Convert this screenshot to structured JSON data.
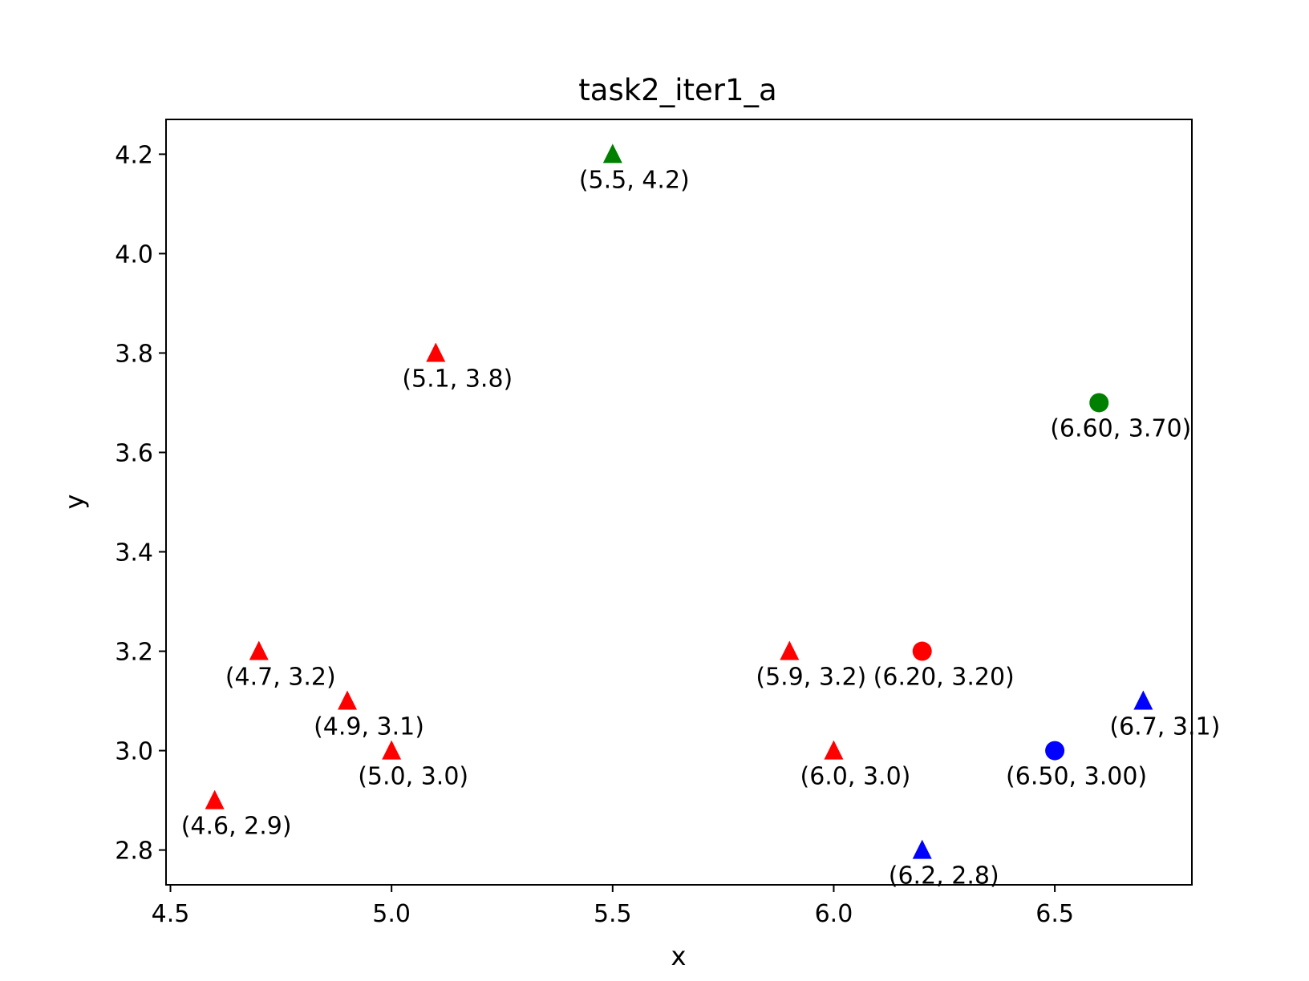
{
  "chart_data": {
    "type": "scatter",
    "title": "task2_iter1_a",
    "xlabel": "x",
    "ylabel": "y",
    "xlim": [
      4.49,
      6.81
    ],
    "ylim": [
      2.73,
      4.27
    ],
    "xticks": [
      "4.5",
      "5.0",
      "5.5",
      "6.0",
      "6.5"
    ],
    "yticks": [
      "2.8",
      "3.0",
      "3.2",
      "3.4",
      "3.6",
      "3.8",
      "4.0",
      "4.2"
    ],
    "grid": false,
    "points": [
      {
        "x": 4.6,
        "y": 2.9,
        "marker": "triangle",
        "color": "#ff0000",
        "label": "(4.6, 2.9)"
      },
      {
        "x": 4.7,
        "y": 3.2,
        "marker": "triangle",
        "color": "#ff0000",
        "label": "(4.7, 3.2)"
      },
      {
        "x": 4.9,
        "y": 3.1,
        "marker": "triangle",
        "color": "#ff0000",
        "label": "(4.9, 3.1)"
      },
      {
        "x": 5.0,
        "y": 3.0,
        "marker": "triangle",
        "color": "#ff0000",
        "label": "(5.0, 3.0)"
      },
      {
        "x": 5.1,
        "y": 3.8,
        "marker": "triangle",
        "color": "#ff0000",
        "label": "(5.1, 3.8)"
      },
      {
        "x": 5.5,
        "y": 4.2,
        "marker": "triangle",
        "color": "#008000",
        "label": "(5.5, 4.2)"
      },
      {
        "x": 5.9,
        "y": 3.2,
        "marker": "triangle",
        "color": "#ff0000",
        "label": "(5.9, 3.2)"
      },
      {
        "x": 6.0,
        "y": 3.0,
        "marker": "triangle",
        "color": "#ff0000",
        "label": "(6.0, 3.0)"
      },
      {
        "x": 6.2,
        "y": 2.8,
        "marker": "triangle",
        "color": "#0000ff",
        "label": "(6.2, 2.8)"
      },
      {
        "x": 6.7,
        "y": 3.1,
        "marker": "triangle",
        "color": "#0000ff",
        "label": "(6.7, 3.1)"
      },
      {
        "x": 6.2,
        "y": 3.2,
        "marker": "circle",
        "color": "#ff0000",
        "label": "(6.20, 3.20)"
      },
      {
        "x": 6.6,
        "y": 3.7,
        "marker": "circle",
        "color": "#008000",
        "label": "(6.60, 3.70)"
      },
      {
        "x": 6.5,
        "y": 3.0,
        "marker": "circle",
        "color": "#0000ff",
        "label": "(6.50, 3.00)"
      }
    ]
  }
}
